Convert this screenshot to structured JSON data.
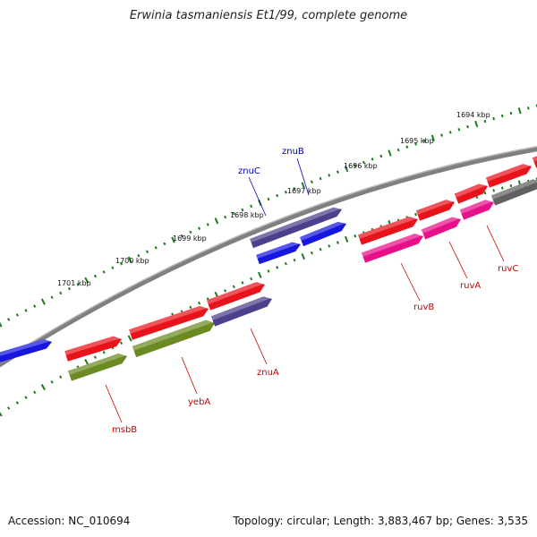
{
  "title": "Erwinia tasmaniensis Et1/99, complete genome",
  "accession": "Accession: NC_010694",
  "stats": "Topology: circular; Length: 3,883,467 bp; Genes: 3,535",
  "colors": {
    "backbone": "#808080",
    "tick": "#1e7a1e",
    "red": "#e8131a",
    "blue": "#1616e0",
    "navy": "#4c3f8c",
    "olive": "#6b8b22",
    "pink": "#e8108a",
    "gray": "#606060",
    "label_red": "#cc0000",
    "label_blue": "#0000bb"
  },
  "kbp_labels": [
    "1694 kbp",
    "1695 kbp",
    "1696 kbp",
    "1697 kbp",
    "1698 kbp",
    "1699 kbp",
    "1700 kbp",
    "1701 kbp"
  ],
  "gene_labels": [
    {
      "text": "znuB",
      "color": "blue"
    },
    {
      "text": "znuC",
      "color": "blue"
    },
    {
      "text": "ruvC",
      "color": "red"
    },
    {
      "text": "ruvA",
      "color": "red"
    },
    {
      "text": "ruvB",
      "color": "red"
    },
    {
      "text": "znuA",
      "color": "red"
    },
    {
      "text": "yebA",
      "color": "red"
    },
    {
      "text": "msbB",
      "color": "red"
    }
  ]
}
